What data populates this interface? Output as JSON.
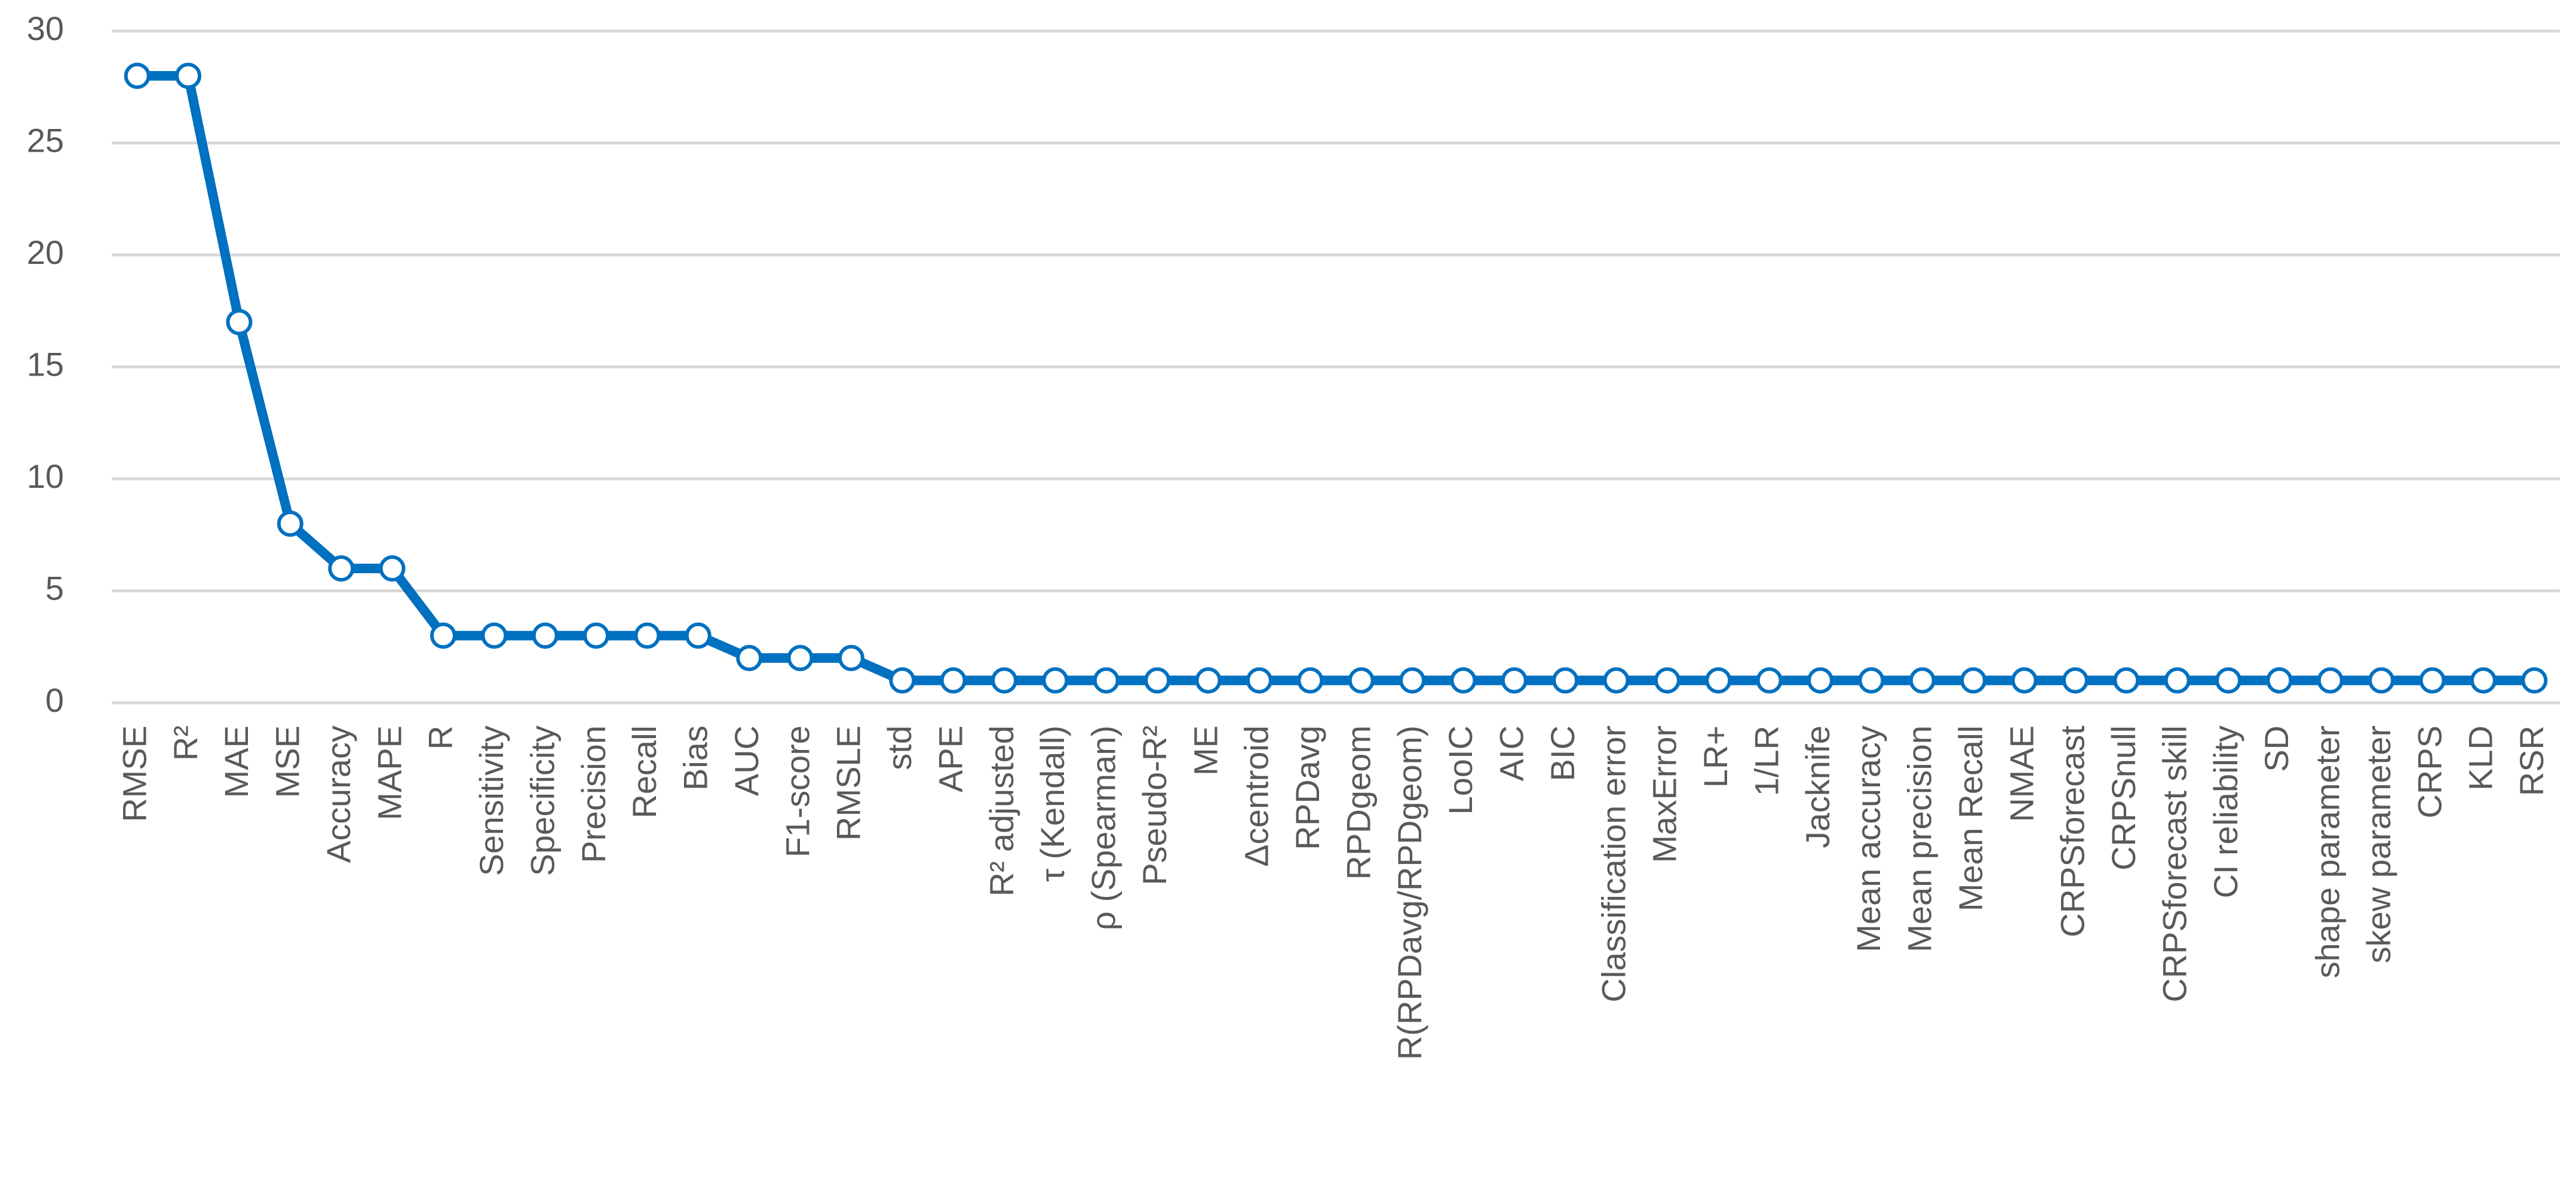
{
  "chart_data": {
    "type": "line",
    "categories": [
      "RMSE",
      "R²",
      "MAE",
      "MSE",
      "Accuracy",
      "MAPE",
      "R",
      "Sensitivity",
      "Specificity",
      "Precision",
      "Recall",
      "Bias",
      "AUC",
      "F1-score",
      "RMSLE",
      "std",
      "APE",
      "R² adjusted",
      "τ (Kendall)",
      "ρ (Spearman)",
      "Pseudo-R²",
      "ME",
      "Δcentroid",
      "RPDavg",
      "RPDgeom",
      "R(RPDavg/RPDgeom)",
      "LooIC",
      "AIC",
      "BIC",
      "Classification error",
      "MaxError",
      "LR+",
      "1/LR",
      "Jacknife",
      "Mean accuracy",
      "Mean precision",
      "Mean Recall",
      "NMAE",
      "CRPSforecast",
      "CRPSnull",
      "CRPSforecast skill",
      "CI reliability",
      "SD",
      "shape parameter",
      "skew parameter",
      "CRPS",
      "KLD",
      "RSR"
    ],
    "values": [
      28,
      28,
      17,
      8,
      6,
      6,
      3,
      3,
      3,
      3,
      3,
      3,
      2,
      2,
      2,
      1,
      1,
      1,
      1,
      1,
      1,
      1,
      1,
      1,
      1,
      1,
      1,
      1,
      1,
      1,
      1,
      1,
      1,
      1,
      1,
      1,
      1,
      1,
      1,
      1,
      1,
      1,
      1,
      1,
      1,
      1,
      1,
      1
    ],
    "color": "#0070c0",
    "ylim": [
      0,
      30
    ],
    "yticks": [
      0,
      5,
      10,
      15,
      20,
      25,
      30
    ],
    "grid": true
  }
}
